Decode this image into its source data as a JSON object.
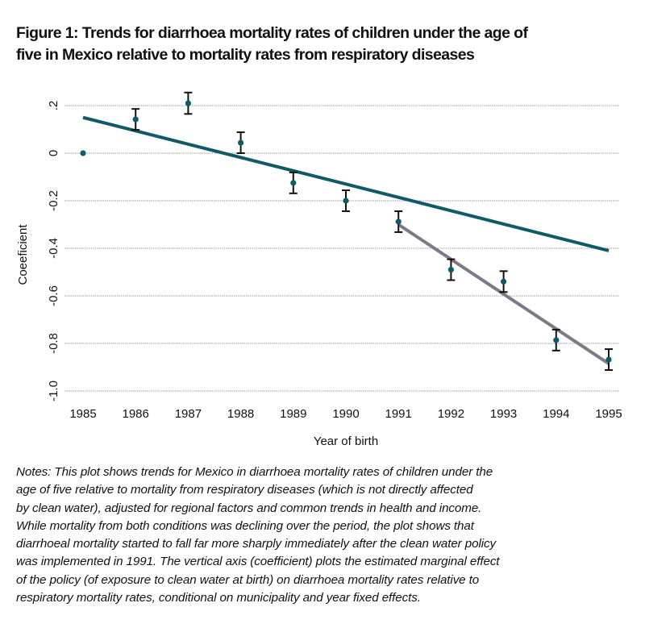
{
  "title_lines": [
    "Figure 1: Trends for diarrhoea mortality rates of children under the age of",
    "five in Mexico relative to mortality rates from respiratory diseases"
  ],
  "notes_lines": [
    "Notes: This plot shows trends for Mexico in diarrhoea mortality rates of children under the",
    "age of five relative to mortality from respiratory diseases (which is not directly affected",
    "by clean water), adjusted for regional factors and common trends in health and income.",
    "While mortality from both conditions was declining over the period, the plot shows that",
    "diarrhoeal mortality started to fall far more sharply immediately after the clean water policy",
    "was implemented in 1991. The vertical axis (coefficient) plots the estimated marginal effect",
    "of the policy (of exposure to clean water at birth) on diarrhoea mortality rates relative to",
    "respiratory mortality rates, conditional on municipality and year fixed effects."
  ],
  "chart_data": {
    "type": "scatter",
    "xlabel": "Year of birth",
    "ylabel": "Coeeficient",
    "xlim": [
      1985,
      1995
    ],
    "ylim": [
      -1.0,
      0.2
    ],
    "grid": true,
    "x_ticks": [
      "1985",
      "1986",
      "1987",
      "1988",
      "1989",
      "1990",
      "1991",
      "1992",
      "1993",
      "1994",
      "1995"
    ],
    "y_ticks": [
      {
        "value": 0.2,
        "label": ".2"
      },
      {
        "value": 0,
        "label": "0"
      },
      {
        "value": -0.2,
        "label": "-0.2"
      },
      {
        "value": -0.4,
        "label": "-0.4"
      },
      {
        "value": -0.6,
        "label": "-0.6"
      },
      {
        "value": -0.8,
        "label": "-0.8"
      },
      {
        "value": -1.0,
        "label": "-1.0"
      }
    ],
    "points": [
      {
        "x": 1985,
        "y": 0.0,
        "err": 0
      },
      {
        "x": 1986,
        "y": 0.142,
        "err": 0.044
      },
      {
        "x": 1987,
        "y": 0.21,
        "err": 0.045
      },
      {
        "x": 1988,
        "y": 0.044,
        "err": 0.044
      },
      {
        "x": 1989,
        "y": -0.125,
        "err": 0.044
      },
      {
        "x": 1990,
        "y": -0.2,
        "err": 0.044
      },
      {
        "x": 1991,
        "y": -0.288,
        "err": 0.044
      },
      {
        "x": 1992,
        "y": -0.49,
        "err": 0.044
      },
      {
        "x": 1993,
        "y": -0.54,
        "err": 0.044
      },
      {
        "x": 1994,
        "y": -0.786,
        "err": 0.044
      },
      {
        "x": 1995,
        "y": -0.868,
        "err": 0.044
      }
    ],
    "trend_lines": [
      {
        "name": "overall-trend",
        "x": [
          1985,
          1995
        ],
        "y": [
          0.15,
          -0.41
        ],
        "color": "#0e5a66"
      },
      {
        "name": "post-1991-trend",
        "x": [
          1991,
          1995
        ],
        "y": [
          -0.3,
          -0.885
        ],
        "color": "#7b7b88"
      }
    ],
    "point_color": "#0e5a66",
    "error_color": "#111111"
  }
}
